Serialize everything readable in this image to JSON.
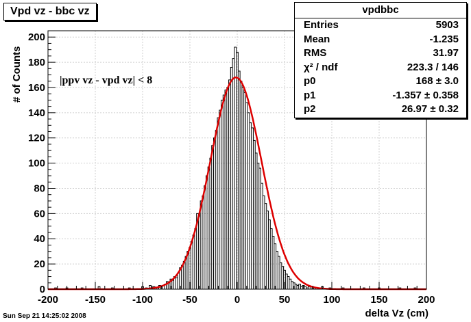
{
  "title": "Vpd vz - bbc vz",
  "stats": {
    "name": "vpdbbc",
    "rows": [
      {
        "label": "Entries",
        "value": "5903"
      },
      {
        "label": "Mean",
        "value": "-1.235"
      },
      {
        "label": "RMS",
        "value": "31.97"
      },
      {
        "label": "χ² / ndf",
        "value": "223.3 / 146"
      },
      {
        "label": "p0",
        "value": "168 ± 3.0"
      },
      {
        "label": "p1",
        "value": "-1.357 ± 0.358"
      },
      {
        "label": "p2",
        "value": "26.97 ± 0.32"
      }
    ]
  },
  "annotation": "|ppv vz - vpd vz| < 8",
  "date_stamp": "Sun Sep 21 14:25:02 2008",
  "colors": {
    "histogram": "#000000",
    "fit": "#dd0000",
    "grid": "#cfcfcf"
  },
  "chart_data": {
    "type": "histogram",
    "xlabel": "delta Vz (cm)",
    "ylabel": "# of Counts",
    "xlim": [
      -200,
      200
    ],
    "ylim": [
      0,
      205
    ],
    "xticks": [
      -200,
      -150,
      -100,
      -50,
      0,
      50,
      100,
      150,
      200
    ],
    "yticks": [
      0,
      20,
      40,
      60,
      80,
      100,
      120,
      140,
      160,
      180,
      200
    ],
    "grid": true,
    "bin_width": 2,
    "bins": [
      {
        "x": -192,
        "y": 1
      },
      {
        "x": -180,
        "y": 1
      },
      {
        "x": -164,
        "y": 1
      },
      {
        "x": -146,
        "y": 2
      },
      {
        "x": -132,
        "y": 1
      },
      {
        "x": -114,
        "y": 1
      },
      {
        "x": -100,
        "y": 2
      },
      {
        "x": -96,
        "y": 1
      },
      {
        "x": -92,
        "y": 3
      },
      {
        "x": -88,
        "y": 2
      },
      {
        "x": -84,
        "y": 1
      },
      {
        "x": -82,
        "y": 3
      },
      {
        "x": -78,
        "y": 3
      },
      {
        "x": -76,
        "y": 4
      },
      {
        "x": -74,
        "y": 6
      },
      {
        "x": -72,
        "y": 5
      },
      {
        "x": -70,
        "y": 8
      },
      {
        "x": -68,
        "y": 7
      },
      {
        "x": -66,
        "y": 10
      },
      {
        "x": -64,
        "y": 9
      },
      {
        "x": -62,
        "y": 13
      },
      {
        "x": -60,
        "y": 17
      },
      {
        "x": -58,
        "y": 19
      },
      {
        "x": -56,
        "y": 22
      },
      {
        "x": -54,
        "y": 26
      },
      {
        "x": -52,
        "y": 30
      },
      {
        "x": -50,
        "y": 33
      },
      {
        "x": -48,
        "y": 38
      },
      {
        "x": -46,
        "y": 43
      },
      {
        "x": -44,
        "y": 48
      },
      {
        "x": -42,
        "y": 60
      },
      {
        "x": -40,
        "y": 58
      },
      {
        "x": -38,
        "y": 70
      },
      {
        "x": -36,
        "y": 74
      },
      {
        "x": -34,
        "y": 82
      },
      {
        "x": -32,
        "y": 90
      },
      {
        "x": -30,
        "y": 97
      },
      {
        "x": -28,
        "y": 104
      },
      {
        "x": -26,
        "y": 114
      },
      {
        "x": -24,
        "y": 120
      },
      {
        "x": -22,
        "y": 126
      },
      {
        "x": -20,
        "y": 136
      },
      {
        "x": -18,
        "y": 142
      },
      {
        "x": -16,
        "y": 150
      },
      {
        "x": -14,
        "y": 154
      },
      {
        "x": -12,
        "y": 158
      },
      {
        "x": -10,
        "y": 160
      },
      {
        "x": -8,
        "y": 166
      },
      {
        "x": -6,
        "y": 176
      },
      {
        "x": -4,
        "y": 183
      },
      {
        "x": -2,
        "y": 192
      },
      {
        "x": 0,
        "y": 188
      },
      {
        "x": 2,
        "y": 173
      },
      {
        "x": 4,
        "y": 165
      },
      {
        "x": 6,
        "y": 160
      },
      {
        "x": 8,
        "y": 156
      },
      {
        "x": 10,
        "y": 148
      },
      {
        "x": 12,
        "y": 140
      },
      {
        "x": 14,
        "y": 132
      },
      {
        "x": 16,
        "y": 128
      },
      {
        "x": 18,
        "y": 118
      },
      {
        "x": 20,
        "y": 108
      },
      {
        "x": 22,
        "y": 100
      },
      {
        "x": 24,
        "y": 96
      },
      {
        "x": 26,
        "y": 84
      },
      {
        "x": 28,
        "y": 74
      },
      {
        "x": 30,
        "y": 68
      },
      {
        "x": 32,
        "y": 62
      },
      {
        "x": 34,
        "y": 55
      },
      {
        "x": 36,
        "y": 48
      },
      {
        "x": 38,
        "y": 42
      },
      {
        "x": 40,
        "y": 36
      },
      {
        "x": 42,
        "y": 30
      },
      {
        "x": 44,
        "y": 26
      },
      {
        "x": 46,
        "y": 21
      },
      {
        "x": 48,
        "y": 18
      },
      {
        "x": 50,
        "y": 15
      },
      {
        "x": 52,
        "y": 12
      },
      {
        "x": 54,
        "y": 10
      },
      {
        "x": 56,
        "y": 8
      },
      {
        "x": 58,
        "y": 6
      },
      {
        "x": 60,
        "y": 5
      },
      {
        "x": 62,
        "y": 4
      },
      {
        "x": 64,
        "y": 3
      },
      {
        "x": 66,
        "y": 4
      },
      {
        "x": 68,
        "y": 2
      },
      {
        "x": 70,
        "y": 3
      },
      {
        "x": 72,
        "y": 2
      },
      {
        "x": 74,
        "y": 1
      },
      {
        "x": 76,
        "y": 2
      },
      {
        "x": 80,
        "y": 1
      },
      {
        "x": 84,
        "y": 1
      },
      {
        "x": 90,
        "y": 2
      },
      {
        "x": 98,
        "y": 1
      },
      {
        "x": 112,
        "y": 1
      },
      {
        "x": 134,
        "y": 1
      },
      {
        "x": 150,
        "y": 1
      },
      {
        "x": 172,
        "y": 1
      },
      {
        "x": 188,
        "y": 1
      }
    ],
    "fit": {
      "function": "gaus",
      "p0": 168,
      "p1": -1.357,
      "p2": 26.97
    }
  }
}
